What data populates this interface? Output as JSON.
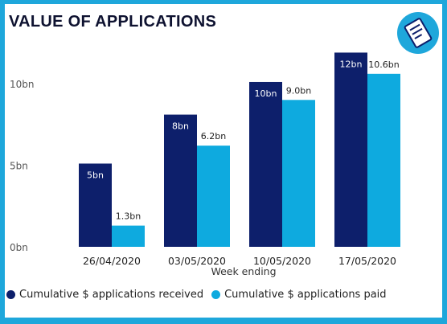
{
  "title": "VALUE OF APPLICATIONS",
  "icon": "document-icon",
  "colors": {
    "frame": "#1ea7db",
    "received": "#0d1f6b",
    "paid": "#0eaadf"
  },
  "chart_data": {
    "type": "bar",
    "title": "VALUE OF APPLICATIONS",
    "xlabel": "Week ending",
    "ylabel": "",
    "categories": [
      "26/04/2020",
      "03/05/2020",
      "10/05/2020",
      "17/05/2020"
    ],
    "ylim": [
      0,
      12
    ],
    "yticks": [
      {
        "value": 0,
        "label": "0bn"
      },
      {
        "value": 5,
        "label": "5bn"
      },
      {
        "value": 10,
        "label": "10bn"
      }
    ],
    "grid": false,
    "legend_position": "bottom",
    "series": [
      {
        "name": "Cumulative $ applications received",
        "values": [
          5.1,
          8.1,
          10.1,
          11.9
        ],
        "labels": [
          "5bn",
          "8bn",
          "10bn",
          "12bn"
        ]
      },
      {
        "name": "Cumulative $ applications paid",
        "values": [
          1.3,
          6.2,
          9.0,
          10.6
        ],
        "labels": [
          "1.3bn",
          "6.2bn",
          "9.0bn",
          "10.6bn"
        ]
      }
    ]
  }
}
